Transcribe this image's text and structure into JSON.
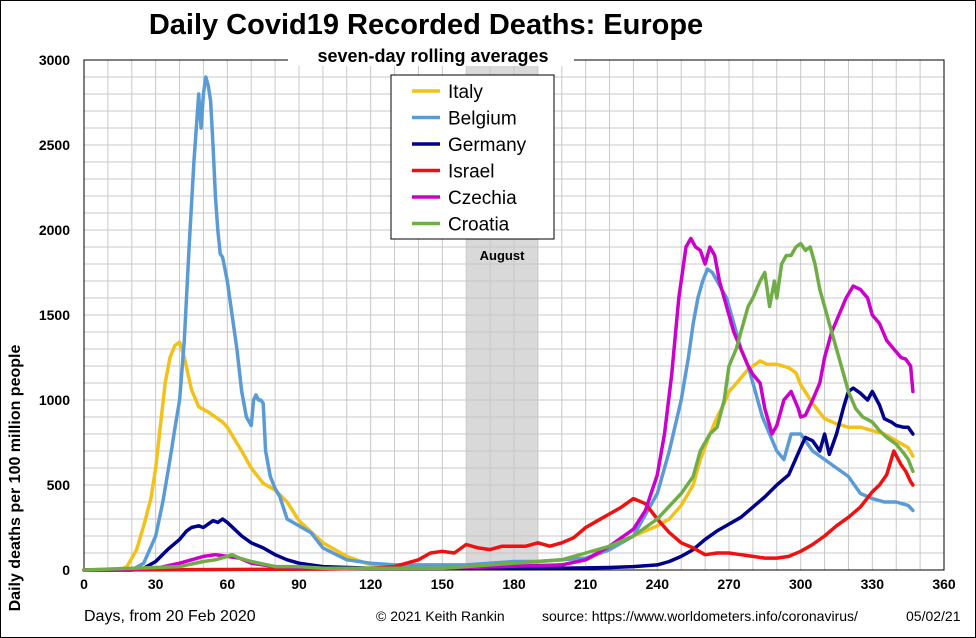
{
  "chart_data": {
    "type": "line",
    "title": "Daily Covid19 Recorded Deaths: Europe",
    "subtitle": "seven-day rolling averages",
    "xlabel": "Days, from 20 Feb 2020",
    "ylabel": "Daily deaths per 100 million people",
    "xlim": [
      0,
      360
    ],
    "ylim": [
      0,
      3000
    ],
    "x_ticks": [
      0,
      30,
      60,
      90,
      120,
      150,
      180,
      210,
      240,
      270,
      300,
      330,
      360
    ],
    "y_ticks": [
      0,
      500,
      1000,
      1500,
      2000,
      2500,
      3000
    ],
    "grid": true,
    "legend_position": "top-center",
    "shaded_band": {
      "label": "August",
      "x_start": 160,
      "x_end": 190,
      "color": "#d9d9d9"
    },
    "series": [
      {
        "name": "Italy",
        "color": "#f2c21b",
        "x": [
          0,
          15,
          18,
          22,
          25,
          28,
          30,
          32,
          34,
          36,
          38,
          40,
          42,
          45,
          48,
          52,
          55,
          58,
          60,
          63,
          66,
          70,
          75,
          80,
          85,
          90,
          100,
          110,
          120,
          140,
          160,
          180,
          200,
          210,
          220,
          230,
          240,
          245,
          250,
          255,
          258,
          262,
          265,
          268,
          270,
          272,
          275,
          278,
          280,
          283,
          286,
          290,
          295,
          298,
          300,
          305,
          310,
          315,
          320,
          325,
          330,
          335,
          340,
          345,
          347
        ],
        "y": [
          0,
          0,
          20,
          120,
          260,
          420,
          600,
          850,
          1100,
          1250,
          1320,
          1340,
          1250,
          1060,
          960,
          930,
          900,
          870,
          840,
          770,
          700,
          600,
          510,
          470,
          400,
          290,
          160,
          80,
          30,
          10,
          10,
          15,
          30,
          60,
          120,
          200,
          260,
          300,
          380,
          500,
          650,
          800,
          900,
          980,
          1050,
          1080,
          1130,
          1180,
          1200,
          1230,
          1210,
          1210,
          1190,
          1160,
          1090,
          980,
          890,
          860,
          840,
          840,
          820,
          800,
          760,
          720,
          670
        ]
      },
      {
        "name": "Belgium",
        "color": "#5b9bd5",
        "x": [
          0,
          20,
          25,
          30,
          33,
          36,
          38,
          40,
          42,
          44,
          46,
          48,
          49,
          50,
          51,
          52,
          53,
          54,
          55,
          56,
          57,
          58,
          60,
          62,
          64,
          66,
          68,
          70,
          71,
          72,
          73,
          74,
          75,
          76,
          78,
          80,
          82,
          85,
          90,
          95,
          100,
          110,
          120,
          130,
          140,
          150,
          160,
          170,
          180,
          190,
          200,
          210,
          220,
          230,
          240,
          245,
          250,
          253,
          255,
          257,
          259,
          261,
          263,
          265,
          267,
          269,
          272,
          275,
          278,
          281,
          284,
          287,
          290,
          293,
          296,
          300,
          305,
          310,
          315,
          320,
          325,
          330,
          335,
          340,
          345,
          347
        ],
        "y": [
          0,
          0,
          40,
          200,
          400,
          650,
          830,
          1000,
          1350,
          1900,
          2400,
          2800,
          2600,
          2800,
          2900,
          2850,
          2760,
          2500,
          2200,
          2000,
          1860,
          1840,
          1700,
          1500,
          1300,
          1050,
          900,
          850,
          1000,
          1030,
          1000,
          1000,
          980,
          700,
          550,
          480,
          430,
          300,
          260,
          220,
          130,
          60,
          40,
          30,
          30,
          30,
          30,
          40,
          50,
          50,
          60,
          70,
          120,
          200,
          450,
          700,
          1000,
          1250,
          1450,
          1600,
          1700,
          1770,
          1750,
          1700,
          1650,
          1600,
          1450,
          1300,
          1200,
          1050,
          900,
          800,
          700,
          650,
          800,
          800,
          700,
          650,
          600,
          550,
          450,
          420,
          400,
          400,
          380,
          350
        ]
      },
      {
        "name": "Germany",
        "color": "#00008b",
        "x": [
          0,
          20,
          25,
          30,
          35,
          40,
          43,
          45,
          48,
          50,
          52,
          54,
          56,
          58,
          60,
          63,
          66,
          70,
          75,
          80,
          85,
          90,
          100,
          120,
          140,
          160,
          180,
          200,
          220,
          230,
          240,
          245,
          250,
          255,
          260,
          265,
          270,
          275,
          280,
          285,
          290,
          295,
          300,
          302,
          305,
          308,
          310,
          312,
          315,
          318,
          320,
          322,
          325,
          328,
          330,
          333,
          335,
          338,
          340,
          343,
          345,
          347
        ],
        "y": [
          0,
          0,
          10,
          50,
          120,
          180,
          230,
          250,
          260,
          250,
          270,
          290,
          280,
          300,
          280,
          240,
          200,
          160,
          130,
          90,
          60,
          40,
          20,
          10,
          10,
          10,
          10,
          10,
          15,
          20,
          30,
          50,
          80,
          120,
          180,
          230,
          270,
          310,
          370,
          430,
          500,
          560,
          720,
          780,
          760,
          700,
          800,
          680,
          800,
          960,
          1050,
          1070,
          1040,
          1000,
          1050,
          970,
          890,
          870,
          850,
          840,
          840,
          800
        ]
      },
      {
        "name": "Israel",
        "color": "#ee1111",
        "x": [
          0,
          100,
          120,
          130,
          140,
          145,
          150,
          155,
          160,
          165,
          170,
          175,
          180,
          185,
          190,
          195,
          200,
          205,
          210,
          215,
          220,
          225,
          230,
          235,
          240,
          245,
          250,
          255,
          260,
          265,
          270,
          275,
          280,
          285,
          290,
          295,
          300,
          305,
          310,
          315,
          320,
          325,
          330,
          333,
          336,
          339,
          342,
          344,
          346,
          347
        ],
        "y": [
          0,
          5,
          10,
          20,
          60,
          100,
          110,
          100,
          150,
          130,
          120,
          140,
          140,
          140,
          160,
          140,
          160,
          190,
          250,
          290,
          330,
          370,
          420,
          390,
          300,
          220,
          160,
          130,
          90,
          100,
          100,
          90,
          80,
          70,
          70,
          80,
          110,
          150,
          200,
          260,
          310,
          370,
          460,
          500,
          560,
          700,
          620,
          580,
          520,
          500
        ]
      },
      {
        "name": "Czechia",
        "color": "#cc00cc",
        "x": [
          0,
          30,
          40,
          45,
          50,
          55,
          60,
          65,
          70,
          80,
          100,
          150,
          200,
          210,
          220,
          230,
          235,
          240,
          243,
          246,
          249,
          252,
          254,
          256,
          258,
          260,
          262,
          264,
          266,
          268,
          270,
          272,
          275,
          278,
          280,
          283,
          285,
          288,
          290,
          293,
          296,
          299,
          300,
          302,
          305,
          308,
          310,
          313,
          316,
          319,
          322,
          325,
          328,
          330,
          333,
          336,
          339,
          342,
          344,
          346,
          347
        ],
        "y": [
          0,
          10,
          40,
          60,
          80,
          90,
          80,
          70,
          40,
          20,
          10,
          10,
          30,
          60,
          140,
          240,
          350,
          560,
          800,
          1150,
          1600,
          1900,
          1950,
          1900,
          1880,
          1800,
          1900,
          1850,
          1700,
          1600,
          1500,
          1400,
          1300,
          1200,
          1150,
          1100,
          950,
          800,
          850,
          1000,
          1050,
          950,
          900,
          910,
          1000,
          1100,
          1250,
          1400,
          1500,
          1600,
          1670,
          1650,
          1600,
          1500,
          1450,
          1350,
          1300,
          1250,
          1240,
          1200,
          1050
        ]
      },
      {
        "name": "Croatia",
        "color": "#70ad47",
        "x": [
          0,
          40,
          50,
          55,
          60,
          62,
          65,
          70,
          80,
          90,
          100,
          150,
          200,
          210,
          220,
          230,
          240,
          250,
          255,
          258,
          262,
          265,
          268,
          270,
          273,
          276,
          278,
          280,
          283,
          285,
          287,
          289,
          290,
          292,
          294,
          296,
          298,
          300,
          302,
          304,
          306,
          308,
          310,
          312,
          315,
          318,
          320,
          323,
          326,
          330,
          333,
          336,
          340,
          343,
          345,
          347
        ],
        "y": [
          0,
          20,
          50,
          60,
          80,
          90,
          70,
          50,
          20,
          20,
          10,
          10,
          60,
          100,
          140,
          200,
          300,
          450,
          550,
          700,
          800,
          840,
          1000,
          1200,
          1300,
          1450,
          1550,
          1600,
          1700,
          1750,
          1550,
          1700,
          1600,
          1800,
          1850,
          1850,
          1900,
          1920,
          1880,
          1900,
          1800,
          1650,
          1550,
          1450,
          1300,
          1150,
          1050,
          950,
          900,
          870,
          820,
          780,
          740,
          690,
          650,
          580
        ]
      }
    ],
    "footer": {
      "copyright": "© 2021  Keith  Rankin",
      "source": "source:  https://www.worldometers.info/coronavirus/",
      "date": "05/02/21"
    }
  }
}
